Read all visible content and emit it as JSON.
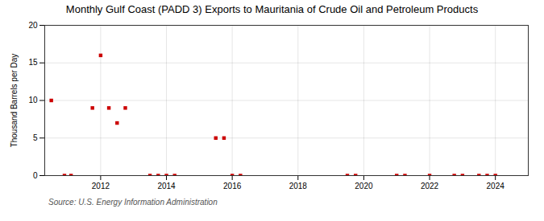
{
  "chart_data": {
    "type": "scatter",
    "title": "Monthly Gulf Coast (PADD 3) Exports to Mauritania of Crude Oil and Petroleum Products",
    "ylabel": "Thousand Barrels per Day",
    "source": "Source: U.S. Energy Information Administration",
    "color": "#cc0000",
    "marker": "square",
    "grid": true,
    "xlim": [
      2010.3,
      2025.0
    ],
    "xticks": [
      2012,
      2014,
      2016,
      2018,
      2020,
      2022,
      2024
    ],
    "ylim": [
      0,
      20
    ],
    "yticks": [
      0,
      5,
      10,
      15,
      20
    ],
    "x": [
      2010.5,
      2010.9,
      2011.1,
      2011.75,
      2012.0,
      2012.25,
      2012.5,
      2012.75,
      2013.5,
      2013.75,
      2014.0,
      2014.25,
      2015.5,
      2015.75,
      2016.0,
      2016.25,
      2019.5,
      2019.75,
      2021.0,
      2021.25,
      2022.0,
      2022.75,
      2023.0,
      2023.5,
      2023.75,
      2024.0
    ],
    "values": [
      10.0,
      0.0,
      0.0,
      9.0,
      16.0,
      9.0,
      7.0,
      9.0,
      0.0,
      0.0,
      0.0,
      0.0,
      5.0,
      5.0,
      0.0,
      0.0,
      0.0,
      0.0,
      0.0,
      0.0,
      0.0,
      0.0,
      0.0,
      0.0,
      0.0,
      0.0
    ]
  }
}
